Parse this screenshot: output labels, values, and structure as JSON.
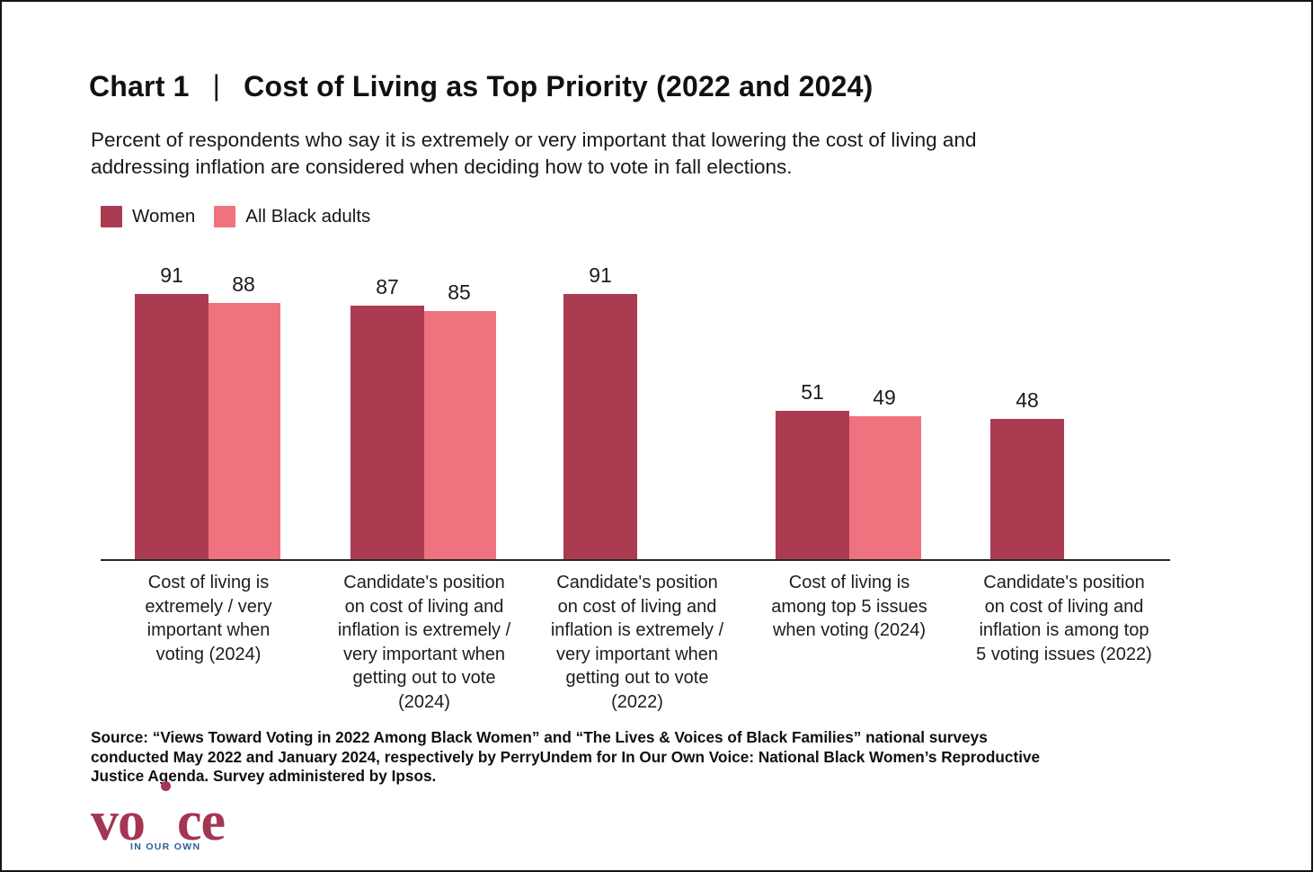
{
  "header": {
    "title_prefix": "Chart 1",
    "title_separator": "|",
    "title_main": "Cost of Living as Top Priority (2022 and 2024)",
    "subtitle": "Percent of respondents who say it is extremely or very important that lowering the cost of living and\naddressing inflation are considered when deciding how to vote in fall elections."
  },
  "legend": {
    "items": [
      {
        "label": "Women",
        "color": "#AB3B51"
      },
      {
        "label": "All Black adults",
        "color": "#EE737F"
      }
    ]
  },
  "chart_data": {
    "type": "bar",
    "title": "Chart 1 | Cost of Living as Top Priority (2022 and 2024)",
    "ylim": [
      0,
      100
    ],
    "grid": false,
    "y_axis_visible": false,
    "legend_position": "top-left",
    "value_labels": true,
    "categories": [
      "Cost of living is\nextremely / very\nimportant when\nvoting (2024)",
      "Candidate's position\non cost of living and\ninflation is extremely /\nvery important when\ngetting out to vote\n(2024)",
      "Candidate's position\non cost of living and\ninflation is extremely /\nvery important when\ngetting out to vote\n(2022)",
      "Cost of living is\namong top 5 issues\nwhen voting (2024)",
      "Candidate's position\non cost of living and\ninflation is among top\n5 voting issues (2022)"
    ],
    "series": [
      {
        "name": "Women",
        "color": "#AB3B51",
        "values": [
          91,
          87,
          91,
          51,
          48
        ]
      },
      {
        "name": "All Black adults",
        "color": "#EE737F",
        "values": [
          88,
          85,
          null,
          49,
          null
        ]
      }
    ]
  },
  "footer": {
    "source": "Source: “Views Toward Voting in 2022 Among Black Women” and “The Lives & Voices of Black Families” national surveys\nconducted May 2022 and January 2024, respectively by PerryUndem for In Our Own Voice: National Black Women’s Reproductive\nJustice Agenda. Survey administered by Ipsos.",
    "logo": {
      "word_left": "vo",
      "word_right": "ce",
      "overlay": "IN OUR OWN",
      "word_color": "#A43553",
      "overlay_color": "#2D6095"
    }
  }
}
